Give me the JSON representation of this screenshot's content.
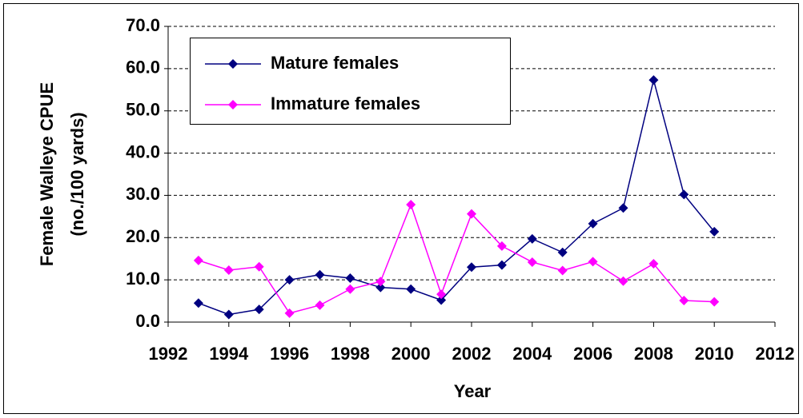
{
  "chart_data": {
    "type": "line",
    "xlabel": "Year",
    "ylabel": [
      "Female Walleye CPUE",
      "(no./100 yards)"
    ],
    "x": [
      1993,
      1994,
      1995,
      1996,
      1997,
      1998,
      1999,
      2000,
      2001,
      2002,
      2003,
      2004,
      2005,
      2006,
      2007,
      2008,
      2009,
      2010
    ],
    "series": [
      {
        "name": "Mature females",
        "color": "#000080",
        "values": [
          4.5,
          1.8,
          3.0,
          10.0,
          11.2,
          10.4,
          8.2,
          7.8,
          5.2,
          13.0,
          13.5,
          19.7,
          16.5,
          23.3,
          27.0,
          57.3,
          30.2,
          21.4
        ]
      },
      {
        "name": "Immature females",
        "color": "#ff00ff",
        "values": [
          14.6,
          12.3,
          13.1,
          2.1,
          4.0,
          7.8,
          9.6,
          27.8,
          6.6,
          25.6,
          18.0,
          14.2,
          12.2,
          14.3,
          9.7,
          13.8,
          5.1,
          4.8
        ]
      }
    ],
    "xlim": [
      1992,
      2012
    ],
    "xticks": [
      1992,
      1994,
      1996,
      1998,
      2000,
      2002,
      2004,
      2006,
      2008,
      2010,
      2012
    ],
    "ylim": [
      0,
      70
    ],
    "yticks": [
      {
        "value": 0,
        "label": "0.0"
      },
      {
        "value": 10,
        "label": "10.0"
      },
      {
        "value": 20,
        "label": "20.0"
      },
      {
        "value": 30,
        "label": "30.0"
      },
      {
        "value": 40,
        "label": "40.0"
      },
      {
        "value": 50,
        "label": "50.0"
      },
      {
        "value": 60,
        "label": "60.0"
      },
      {
        "value": 70,
        "label": "70.0"
      }
    ],
    "grid": true
  }
}
